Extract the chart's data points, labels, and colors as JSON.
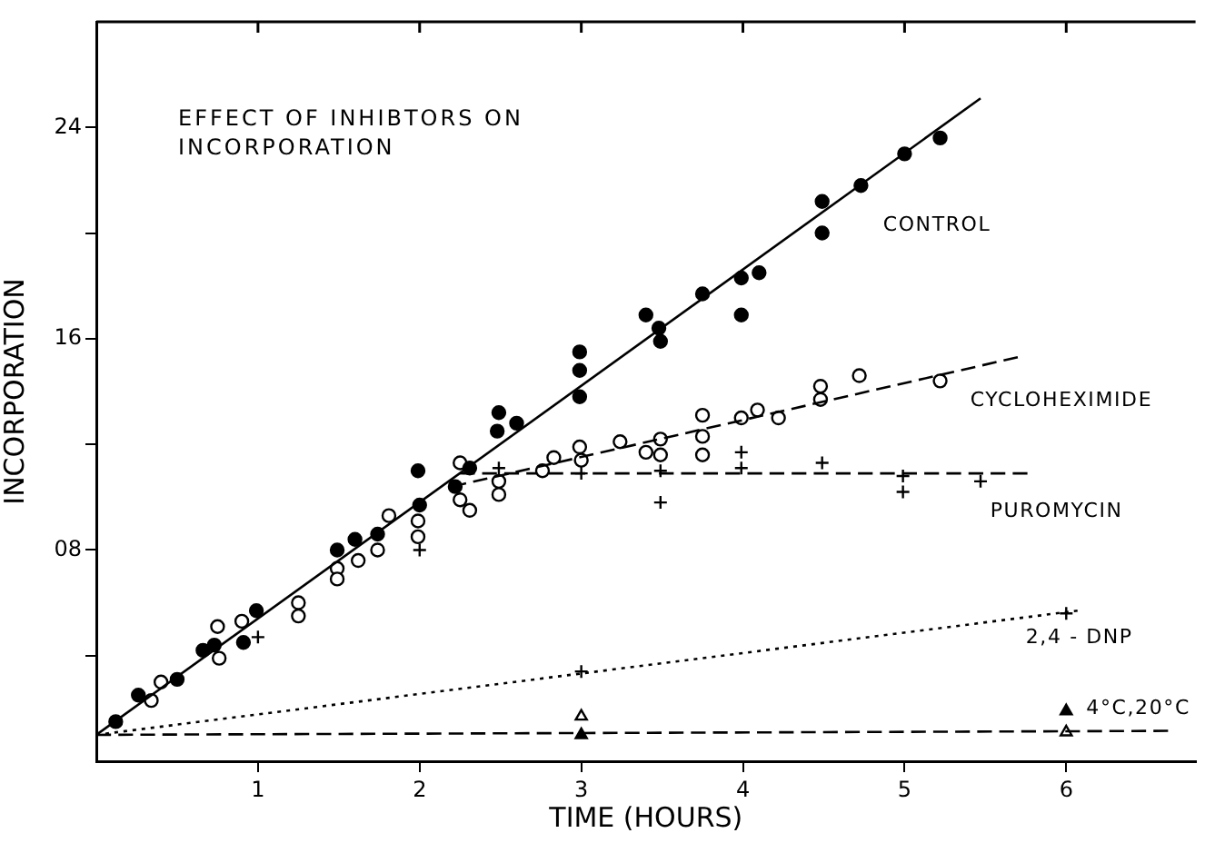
{
  "chart_data": {
    "type": "scatter",
    "title": "EFFECT OF INHIBTORS ON INCORPORATION",
    "xlabel": "TIME (HOURS)",
    "ylabel": "INCORPORATION",
    "xlim": [
      0,
      6.8
    ],
    "xticks": [
      1,
      2,
      3,
      4,
      5,
      6
    ],
    "ylim": [
      0,
      28
    ],
    "yticks": [
      {
        "value": 4,
        "label": null
      },
      {
        "value": 8,
        "label": "08"
      },
      {
        "value": 12,
        "label": null
      },
      16,
      {
        "value": 20,
        "label": null
      },
      24
    ],
    "grid": false,
    "legend": false,
    "series": [
      {
        "type": "line",
        "name": "CONTROL",
        "color": "#000000",
        "line_style": "solid",
        "x": [
          0,
          5.47
        ],
        "values": [
          1.0,
          25.1
        ]
      },
      {
        "type": "scatter",
        "color": "#000000",
        "marker": "circle",
        "x": [
          0.12,
          0.26,
          0.5,
          0.66,
          0.73,
          0.91,
          0.99,
          1.49,
          1.6,
          1.74,
          1.99,
          2.0,
          2.22,
          2.31,
          2.48,
          2.49,
          2.6,
          2.99,
          2.99,
          2.99,
          3.4,
          3.48,
          3.49,
          3.75,
          3.99,
          4.1,
          3.99,
          4.49,
          4.49,
          4.73,
          5.0,
          5.22
        ],
        "values": [
          1.5,
          2.5,
          3.1,
          4.2,
          4.4,
          4.5,
          5.7,
          8.0,
          8.4,
          8.6,
          11.0,
          9.7,
          10.4,
          11.1,
          12.5,
          13.2,
          12.8,
          15.5,
          14.8,
          13.8,
          16.9,
          16.4,
          15.9,
          17.7,
          18.3,
          18.5,
          16.9,
          21.2,
          20.0,
          21.8,
          23.0,
          23.6
        ]
      },
      {
        "type": "line",
        "name": "CYCLOHEXIMIDE",
        "color": "#000000",
        "line_style": "dashed",
        "x": [
          2.2,
          5.7
        ],
        "values": [
          10.4,
          15.3
        ]
      },
      {
        "type": "scatter",
        "color": "#ffffff",
        "marker": "circle",
        "x": [
          0.34,
          0.4,
          0.75,
          0.76,
          0.9,
          1.25,
          1.25,
          1.49,
          1.49,
          1.62,
          1.74,
          1.81,
          1.99,
          1.99,
          2.25,
          2.25,
          2.31,
          2.49,
          2.49,
          2.76,
          2.83,
          2.99,
          3.0,
          3.24,
          3.4,
          3.49,
          3.49,
          3.75,
          3.75,
          3.75,
          3.99,
          4.09,
          4.22,
          4.48,
          4.48,
          4.72,
          5.22
        ],
        "values": [
          2.3,
          3.0,
          5.1,
          3.9,
          5.3,
          6.0,
          5.5,
          7.3,
          6.9,
          7.6,
          8.0,
          9.3,
          9.1,
          8.5,
          11.3,
          9.9,
          9.5,
          10.6,
          10.1,
          11.0,
          11.5,
          11.9,
          11.4,
          12.1,
          11.7,
          12.2,
          11.6,
          12.3,
          11.6,
          13.1,
          13.0,
          13.3,
          13.0,
          14.2,
          13.7,
          14.6,
          14.4
        ]
      },
      {
        "type": "line",
        "name": "PUROMYCIN",
        "color": "#000000",
        "line_style": "dashed",
        "x": [
          2.25,
          5.76
        ],
        "values": [
          10.9,
          10.9
        ]
      },
      {
        "type": "scatter",
        "color": "#000000",
        "marker": "cross",
        "x": [
          1.0,
          2.0,
          2.49,
          3.0,
          3.49,
          3.49,
          3.99,
          3.99,
          4.49,
          4.99,
          4.99,
          5.47
        ],
        "values": [
          4.7,
          8.0,
          11.1,
          10.9,
          11.0,
          9.8,
          11.7,
          11.1,
          11.3,
          10.8,
          10.2,
          10.6
        ]
      },
      {
        "type": "line",
        "name": "2,4 - DNP",
        "color": "#000000",
        "line_style": "dotted",
        "x": [
          0,
          6.07
        ],
        "values": [
          1.0,
          5.7
        ]
      },
      {
        "type": "scatter",
        "color": "#000000",
        "marker": "cross",
        "x": [
          3,
          6
        ],
        "values": [
          3.4,
          5.6
        ]
      },
      {
        "type": "line",
        "name": "4°C,20°C",
        "color": "#000000",
        "line_style": "dashed",
        "x": [
          0,
          6.63
        ],
        "values": [
          1.0,
          1.15
        ]
      },
      {
        "type": "scatter",
        "color": "#000000",
        "marker": "triangle",
        "x": [
          3,
          6
        ],
        "values": [
          1.0,
          1.9
        ]
      },
      {
        "type": "scatter",
        "color": "#ffffff",
        "marker": "triangle",
        "x": [
          3,
          6
        ],
        "values": [
          1.7,
          1.1
        ]
      }
    ]
  }
}
